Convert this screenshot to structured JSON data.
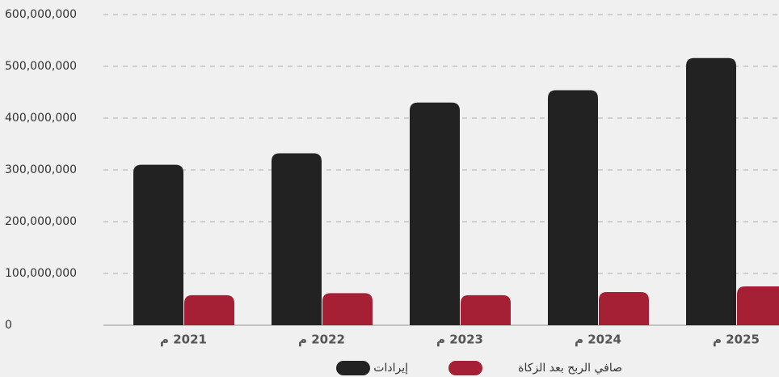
{
  "chart_data": {
    "type": "bar",
    "categories": [
      "2021 م",
      "2022 م",
      "2023 م",
      "2024 م",
      "2025 م"
    ],
    "series": [
      {
        "name": "إيرادات",
        "color": "#222222",
        "values": [
          310000000,
          332000000,
          430000000,
          454000000,
          516000000
        ]
      },
      {
        "name": "صافي الربح بعد الزكاة",
        "color": "#a51f35",
        "values": [
          58000000,
          62000000,
          58000000,
          64000000,
          75000000
        ]
      }
    ],
    "ylim": [
      0,
      600000000
    ],
    "yticks": [
      0,
      {
        "value": 100000000,
        "label": "100,000,000"
      },
      {
        "value": 200000000,
        "label": "200,000,000"
      },
      {
        "value": 300000000,
        "label": "300,000,000"
      },
      {
        "value": 400000000,
        "label": "400,000,000"
      },
      {
        "value": 500000000,
        "label": "500,000,000"
      },
      {
        "value": 600000000,
        "label": "600,000,000"
      }
    ],
    "grid": true,
    "legend": "bottom"
  }
}
